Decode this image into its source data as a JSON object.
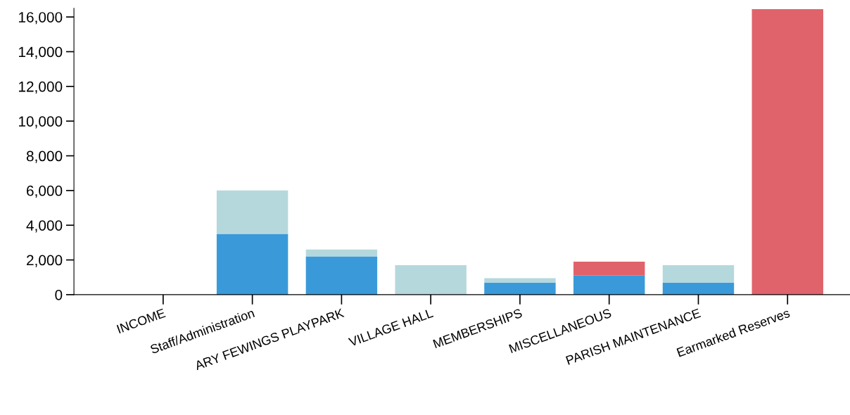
{
  "chart_data": {
    "type": "bar",
    "stacked": true,
    "categories": [
      "INCOME",
      "Staff/Administration",
      "ARY FEWINGS PLAYPARK",
      "VILLAGE HALL",
      "MEMBERSHIPS",
      "MISCELLANEOUS",
      "PARISH MAINTENANCE",
      "Earmarked Reserves"
    ],
    "series": [
      {
        "color": "#3a9ad9",
        "values": [
          0,
          3500,
          2200,
          0,
          700,
          1100,
          700,
          0
        ]
      },
      {
        "color": "#b5d8dc",
        "values": [
          0,
          2500,
          400,
          1700,
          250,
          0,
          1000,
          0
        ]
      },
      {
        "color": "#e0636b",
        "values": [
          0,
          0,
          0,
          0,
          0,
          800,
          0,
          16450
        ]
      }
    ],
    "ylim": [
      0,
      16500
    ],
    "yticks": [
      {
        "value": 0,
        "label": "0"
      },
      {
        "value": 2000,
        "label": "2,000"
      },
      {
        "value": 4000,
        "label": "4,000"
      },
      {
        "value": 6000,
        "label": "6,000"
      },
      {
        "value": 8000,
        "label": "8,000"
      },
      {
        "value": 10000,
        "label": "10,000"
      },
      {
        "value": 12000,
        "label": "12,000"
      },
      {
        "value": 14000,
        "label": "14,000"
      },
      {
        "value": 16000,
        "label": "16,000"
      }
    ],
    "grid": false
  }
}
